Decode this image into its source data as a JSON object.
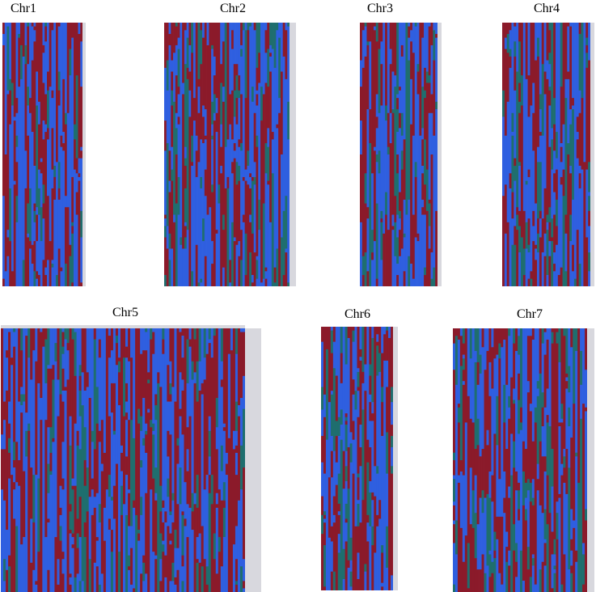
{
  "figure": {
    "colors": {
      "red": "#8b1a2a",
      "blue": "#2f5fe0",
      "teal": "#1f6e6e",
      "label_strip": "#d8d8de"
    }
  },
  "chart_data": [
    {
      "type": "heatmap",
      "title": "Chr1"
    },
    {
      "type": "heatmap",
      "title": "Chr2"
    },
    {
      "type": "heatmap",
      "title": "Chr3"
    },
    {
      "type": "heatmap",
      "title": "Chr4"
    },
    {
      "type": "heatmap",
      "title": "Chr5"
    },
    {
      "type": "heatmap",
      "title": "Chr6"
    },
    {
      "type": "heatmap",
      "title": "Chr7"
    }
  ]
}
